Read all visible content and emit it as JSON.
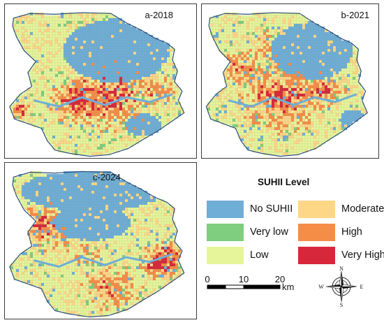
{
  "panels": {
    "a": {
      "label": "a-2018"
    },
    "b": {
      "label": "b-2021"
    },
    "c": {
      "label": "c-2024"
    }
  },
  "legend": {
    "title": "SUHII Level",
    "items": [
      {
        "label": "No SUHII",
        "color": "#6faed6"
      },
      {
        "label": "Very low",
        "color": "#7fcd7f"
      },
      {
        "label": "Low",
        "color": "#e6f59a"
      },
      {
        "label": "Moderate",
        "color": "#fdd686"
      },
      {
        "label": "High",
        "color": "#f58d47"
      },
      {
        "label": "Very High",
        "color": "#d7283b"
      }
    ]
  },
  "scale": {
    "ticks": [
      "0",
      "10",
      "20"
    ],
    "unit": "km"
  },
  "compass": {
    "n": "N",
    "s": "S",
    "e": "E",
    "w": "W"
  }
}
